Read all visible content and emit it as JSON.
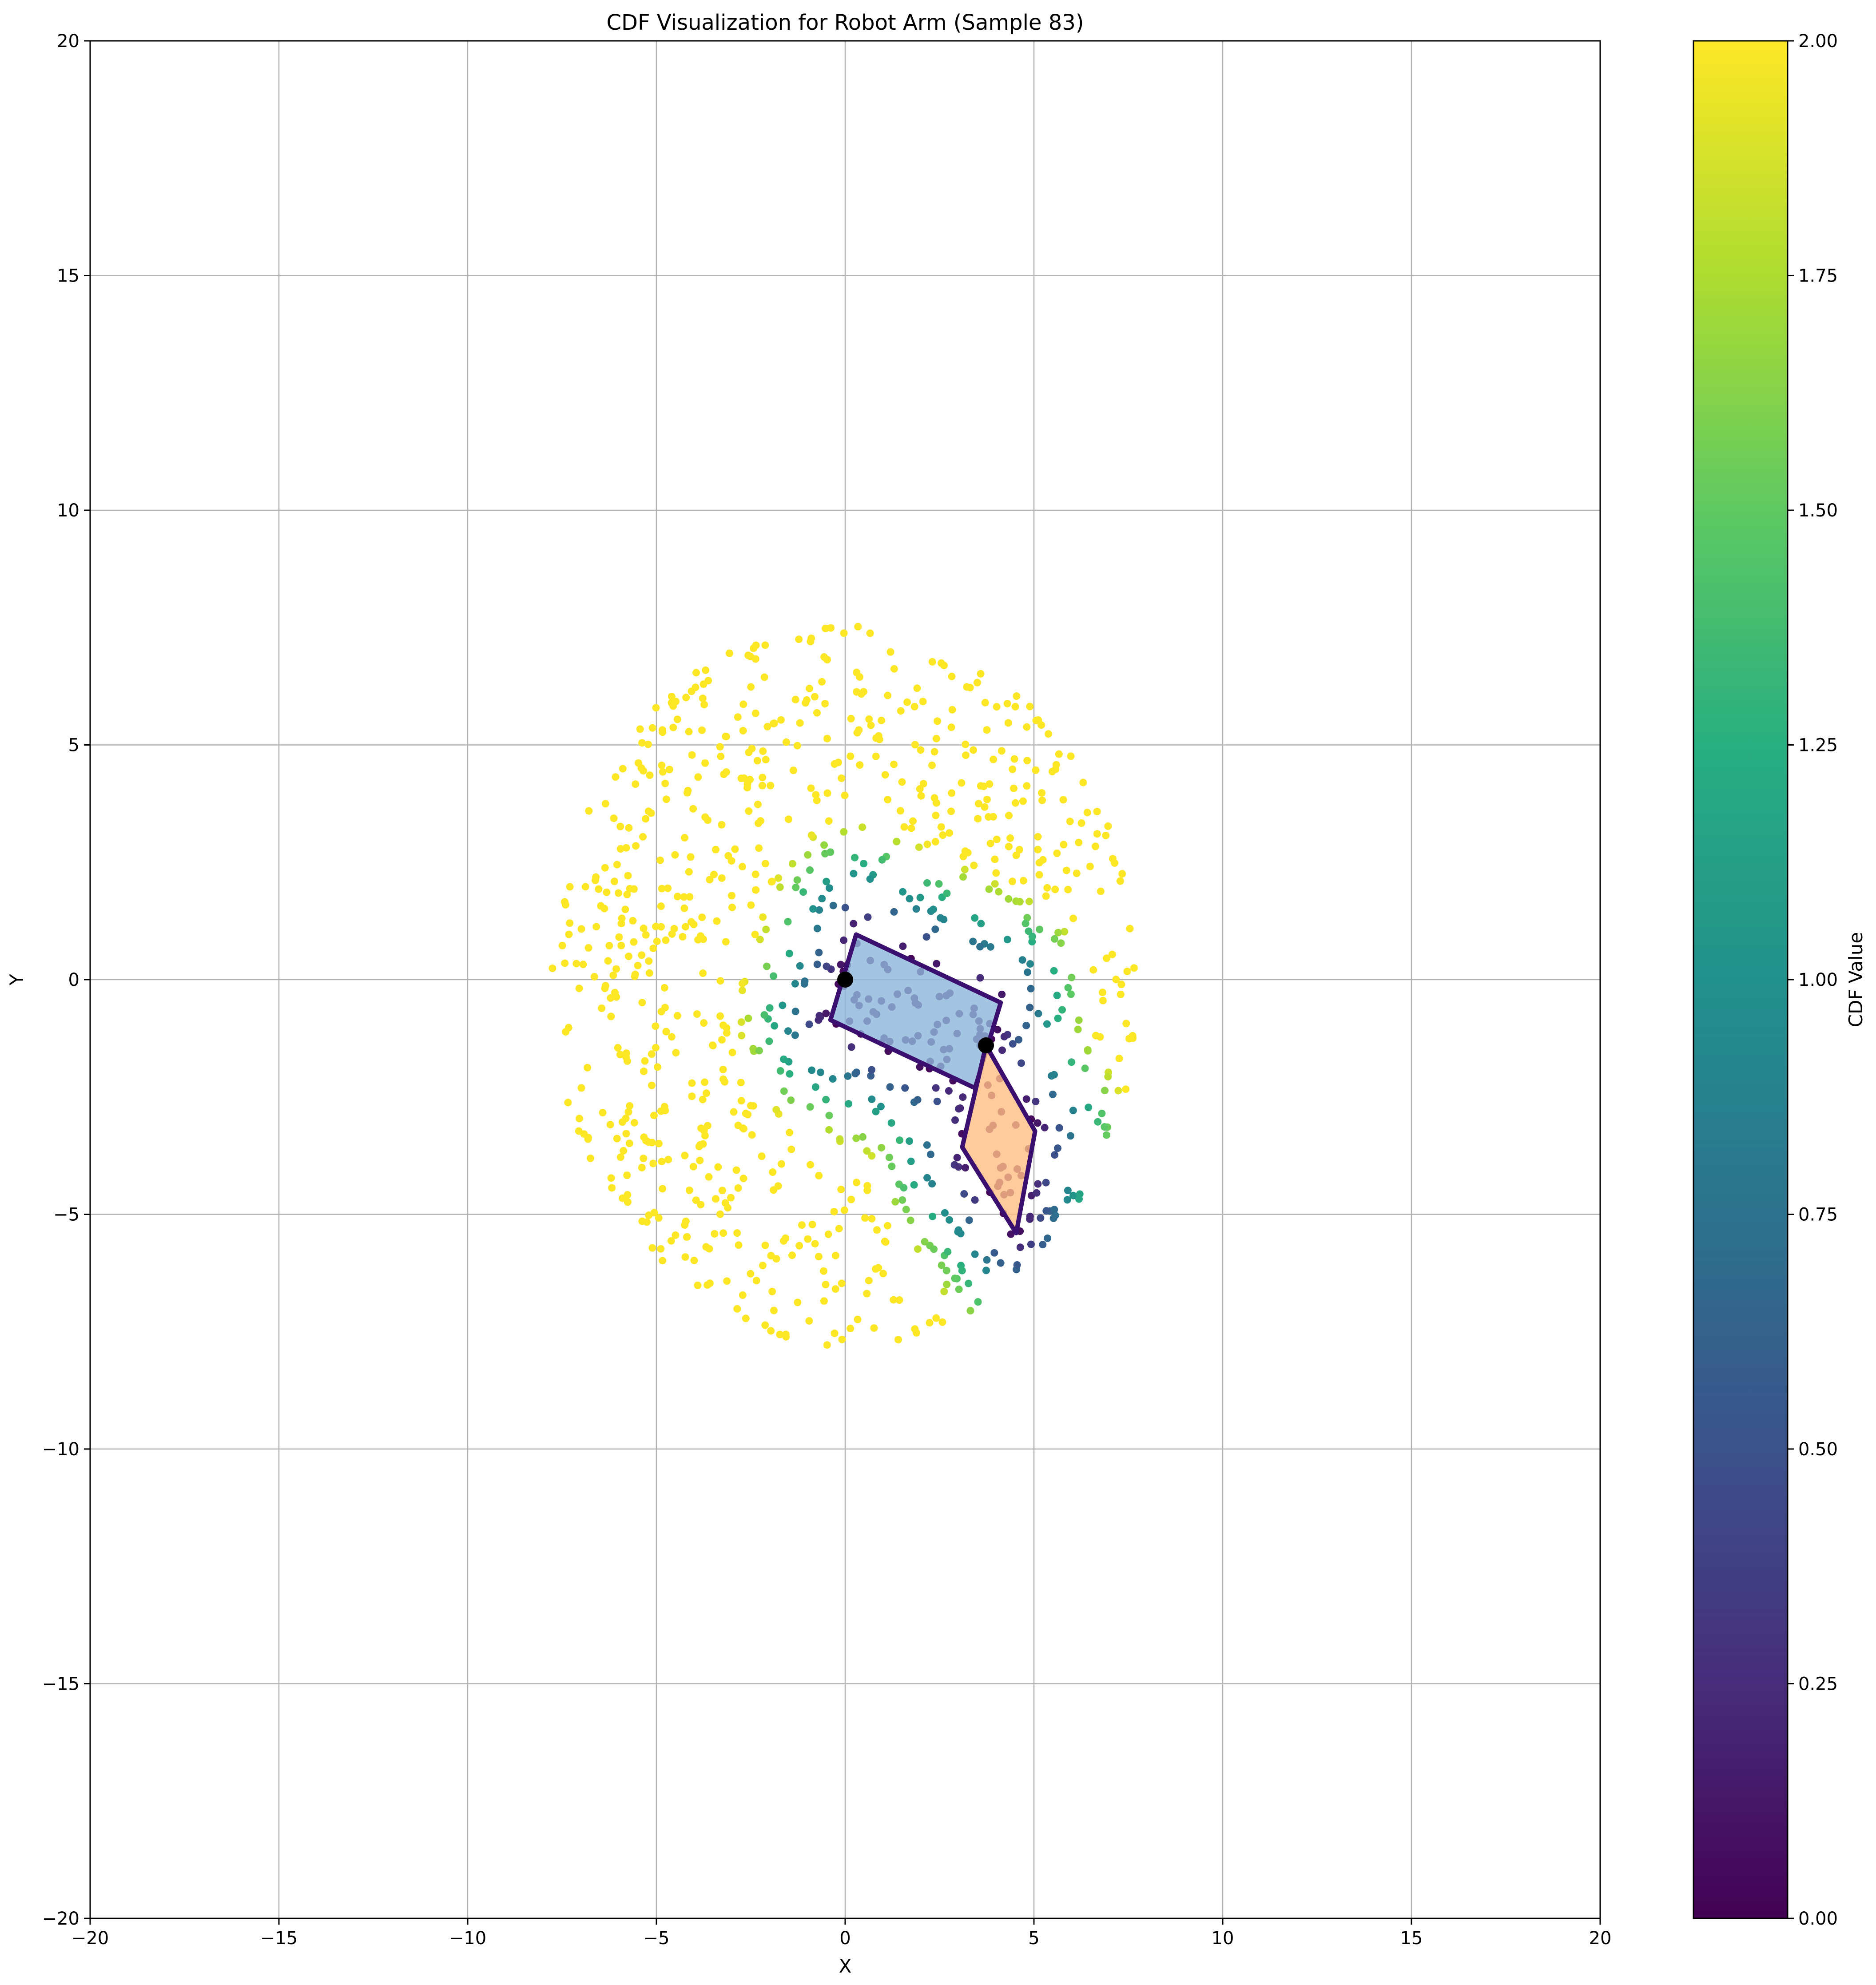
{
  "chart_data": {
    "type": "scatter",
    "title": "CDF Visualization for Robot Arm (Sample 83)",
    "xlabel": "X",
    "ylabel": "Y",
    "xlim": [
      -20,
      20
    ],
    "ylim": [
      -20,
      20
    ],
    "xticks": [
      -20,
      -15,
      -10,
      -5,
      0,
      5,
      10,
      15,
      20
    ],
    "yticks": [
      -20,
      -15,
      -10,
      -5,
      0,
      5,
      10,
      15,
      20
    ],
    "xtick_labels": [
      "−20",
      "−15",
      "−10",
      "−5",
      "0",
      "5",
      "10",
      "15",
      "20"
    ],
    "ytick_labels": [
      "−20",
      "−15",
      "−10",
      "−5",
      "0",
      "5",
      "10",
      "15",
      "20"
    ],
    "grid": true,
    "colormap": "viridis",
    "colorbar": {
      "label": "CDF Value",
      "range": [
        0,
        2
      ],
      "ticks": [
        0,
        0.25,
        0.5,
        0.75,
        1.0,
        1.25,
        1.5,
        1.75,
        2.0
      ],
      "tick_labels": [
        "0.00",
        "0.25",
        "0.50",
        "0.75",
        "1.00",
        "1.25",
        "1.50",
        "1.75",
        "2.00"
      ]
    },
    "samples": {
      "description_of_distribution": "approx 1000 points, elliptical cloud",
      "center": [
        0,
        -0.1
      ],
      "radius_x": 7.8,
      "radius_y": 7.7,
      "count": 1000,
      "color_range": [
        0,
        2
      ]
    },
    "links": [
      {
        "name": "link1",
        "fill_color": "#8fb8dc",
        "edge_color": "#3b0f6f",
        "vertices": [
          [
            0.29,
            0.96
          ],
          [
            4.12,
            -0.49
          ],
          [
            3.44,
            -2.31
          ],
          [
            -0.39,
            -0.86
          ]
        ]
      },
      {
        "name": "link2",
        "fill_color": "#ffbf86",
        "edge_color": "#3b0f6f",
        "vertices": [
          [
            3.73,
            -1.4
          ],
          [
            5.03,
            -3.23
          ],
          [
            4.53,
            -5.4
          ],
          [
            3.1,
            -3.57
          ]
        ]
      }
    ],
    "joints": [
      {
        "name": "base",
        "x": 0,
        "y": 0
      },
      {
        "name": "elbow",
        "x": 3.73,
        "y": -1.4
      }
    ]
  }
}
